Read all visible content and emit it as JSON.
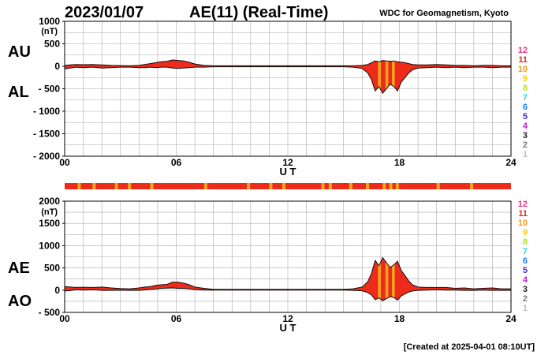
{
  "header": {
    "date": "2023/01/07",
    "title": "AE(11) (Real-Time)",
    "source": "WDC for Geomagnetism, Kyoto"
  },
  "footer": {
    "created": "[Created at 2025-04-01 08:10UT]"
  },
  "colors": {
    "fill_main": "#ee2a1a",
    "fill_stripe": "#f2a51f",
    "outline": "#111111",
    "grid": "#aaaaaa",
    "scale_bar": "#ee2a1a"
  },
  "scale_legend": [
    {
      "label": "12",
      "color": "#e8338a"
    },
    {
      "label": "11",
      "color": "#e82a1a"
    },
    {
      "label": "10",
      "color": "#f29a1b"
    },
    {
      "label": "9",
      "color": "#f2d21b"
    },
    {
      "label": "8",
      "color": "#b6e21a"
    },
    {
      "label": "7",
      "color": "#1ad6e8"
    },
    {
      "label": "6",
      "color": "#1a7fe8"
    },
    {
      "label": "5",
      "color": "#3a2ad6"
    },
    {
      "label": "4",
      "color": "#c21ad6"
    },
    {
      "label": "3",
      "color": "#222222"
    },
    {
      "label": "2",
      "color": "#7a7a7a"
    },
    {
      "label": "1",
      "color": "#bdbdbd"
    }
  ],
  "chart_data": [
    {
      "type": "area",
      "name": "AU/AL",
      "labels": {
        "upper": "AU",
        "lower": "AL"
      },
      "unit": "(nT)",
      "xlabel": "U T",
      "xlim": [
        0,
        24
      ],
      "ylim": [
        -2000,
        1000
      ],
      "x_ticks": [
        0,
        6,
        12,
        18,
        24
      ],
      "x_tick_labels": [
        "00",
        "06",
        "12",
        "18",
        "24"
      ],
      "y_ticks": [
        1000,
        500,
        0,
        -500,
        -1000,
        -1500,
        -2000
      ],
      "y_tick_labels": [
        "1000",
        "500",
        "0",
        "- 500",
        "- 1000",
        "- 1500",
        "- 2000"
      ],
      "grid": true,
      "x": [
        0,
        0.3,
        0.6,
        1,
        1.5,
        2,
        2.5,
        3,
        3.5,
        4,
        4.3,
        4.6,
        4.9,
        5.2,
        5.5,
        5.8,
        6.1,
        6.4,
        6.7,
        7,
        7.5,
        8,
        9,
        10,
        11,
        12,
        13,
        14,
        15,
        15.5,
        16,
        16.3,
        16.5,
        16.7,
        16.9,
        17.1,
        17.3,
        17.5,
        17.7,
        17.9,
        18.1,
        18.3,
        18.5,
        18.7,
        19,
        19.5,
        20,
        20.5,
        21,
        21.5,
        22,
        22.5,
        23,
        23.5,
        24
      ],
      "upper": [
        20,
        30,
        40,
        35,
        40,
        30,
        20,
        15,
        10,
        20,
        40,
        60,
        80,
        100,
        110,
        140,
        130,
        120,
        90,
        50,
        20,
        10,
        10,
        10,
        10,
        10,
        10,
        10,
        10,
        10,
        20,
        40,
        80,
        120,
        100,
        130,
        120,
        110,
        120,
        100,
        90,
        80,
        60,
        40,
        30,
        30,
        40,
        30,
        20,
        20,
        10,
        20,
        20,
        10,
        10
      ],
      "lower": [
        -60,
        -40,
        -20,
        -30,
        -20,
        -40,
        -30,
        -20,
        -20,
        -30,
        -30,
        -20,
        -30,
        -20,
        -20,
        -40,
        -50,
        -40,
        -30,
        -20,
        -20,
        -10,
        -10,
        -10,
        -10,
        -10,
        -10,
        -10,
        -10,
        -20,
        -50,
        -150,
        -300,
        -550,
        -450,
        -600,
        -500,
        -400,
        -450,
        -550,
        -350,
        -250,
        -150,
        -80,
        -40,
        -30,
        -20,
        -30,
        -20,
        -30,
        -20,
        -20,
        -30,
        -20,
        -20
      ]
    },
    {
      "type": "area",
      "name": "AE/AO",
      "labels": {
        "upper": "AE",
        "lower": "AO"
      },
      "unit": "(nT)",
      "xlabel": "U T",
      "xlim": [
        0,
        24
      ],
      "ylim": [
        -500,
        2000
      ],
      "x_ticks": [
        0,
        6,
        12,
        18,
        24
      ],
      "x_tick_labels": [
        "00",
        "06",
        "12",
        "18",
        "24"
      ],
      "y_ticks": [
        2000,
        1500,
        1000,
        500,
        0,
        -500
      ],
      "y_tick_labels": [
        "2000",
        "1500",
        "1000",
        "500",
        "0",
        "- 500"
      ],
      "grid": true,
      "x": [
        0,
        0.3,
        0.6,
        1,
        1.5,
        2,
        2.5,
        3,
        3.5,
        4,
        4.3,
        4.6,
        4.9,
        5.2,
        5.5,
        5.8,
        6.1,
        6.4,
        6.7,
        7,
        7.5,
        8,
        9,
        10,
        11,
        12,
        13,
        14,
        15,
        15.5,
        16,
        16.3,
        16.5,
        16.7,
        16.9,
        17.1,
        17.3,
        17.5,
        17.7,
        17.9,
        18.1,
        18.3,
        18.5,
        18.7,
        19,
        19.5,
        20,
        20.5,
        21,
        21.5,
        22,
        22.5,
        23,
        23.5,
        24
      ],
      "upper": [
        80,
        70,
        60,
        65,
        60,
        70,
        50,
        35,
        30,
        50,
        70,
        80,
        110,
        120,
        130,
        180,
        180,
        160,
        120,
        70,
        40,
        20,
        20,
        20,
        20,
        20,
        20,
        20,
        20,
        30,
        70,
        190,
        380,
        670,
        550,
        730,
        620,
        510,
        570,
        650,
        440,
        330,
        210,
        120,
        70,
        60,
        60,
        60,
        40,
        50,
        30,
        40,
        50,
        30,
        30
      ],
      "lower": [
        -20,
        -10,
        10,
        0,
        10,
        -5,
        -5,
        -2,
        -5,
        -5,
        5,
        20,
        25,
        40,
        45,
        50,
        40,
        40,
        30,
        15,
        0,
        0,
        0,
        0,
        0,
        0,
        0,
        0,
        0,
        -5,
        -15,
        -55,
        -110,
        -215,
        -175,
        -235,
        -190,
        -145,
        -165,
        -225,
        -130,
        -85,
        -45,
        -20,
        -5,
        0,
        10,
        0,
        0,
        -5,
        -5,
        0,
        -5,
        -5,
        -5
      ]
    }
  ]
}
